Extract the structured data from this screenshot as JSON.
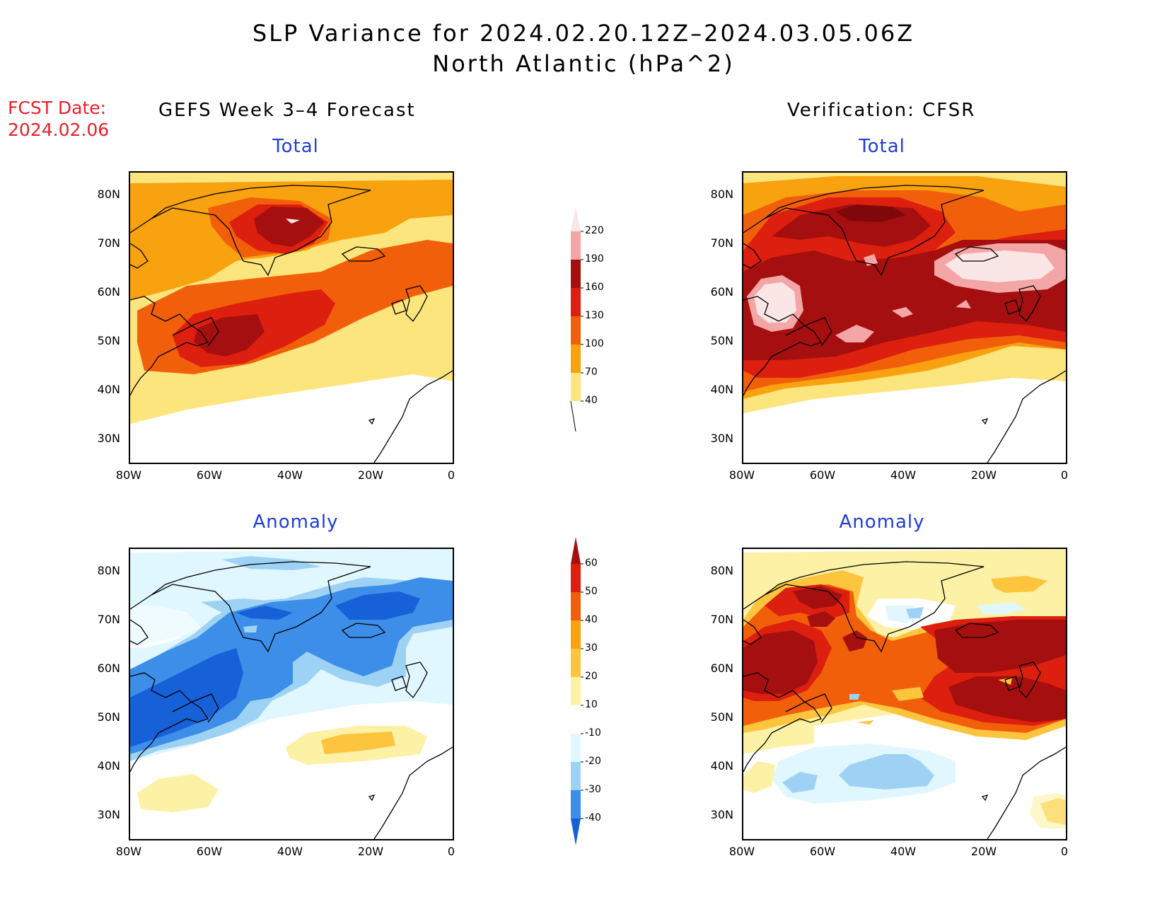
{
  "title": {
    "line1": "SLP Variance for 2024.02.20.12Z–2024.03.05.06Z",
    "line2": "North Atlantic (hPa^2)"
  },
  "fcst_date": {
    "label": "FCST Date:",
    "value": "2024.02.06"
  },
  "columns": {
    "left": "GEFS Week 3–4 Forecast",
    "right": "Verification: CFSR"
  },
  "panels": {
    "total_left_title": "Total",
    "total_right_title": "Total",
    "anom_left_title": "Anomaly",
    "anom_right_title": "Anomaly"
  },
  "axes": {
    "lat_labels": [
      "80N",
      "70N",
      "60N",
      "50N",
      "40N",
      "30N"
    ],
    "lon_labels": [
      "80W",
      "60W",
      "40W",
      "20W",
      "0"
    ]
  },
  "colorbars": {
    "total": {
      "levels": [
        "220",
        "190",
        "160",
        "130",
        "100",
        "70",
        "40"
      ],
      "colors": [
        "#fbe6e6",
        "#f4a5a5",
        "#a50f0f",
        "#dc1f0e",
        "#f25f0a",
        "#f8a20f",
        "#fde57e"
      ]
    },
    "anomaly": {
      "levels": [
        "60",
        "50",
        "40",
        "30",
        "20",
        "10",
        "-10",
        "-20",
        "-30",
        "-40"
      ],
      "colors": [
        "#a50f0f",
        "#dc1f0e",
        "#f25f0a",
        "#f8a20f",
        "#fcc53d",
        "#fdf1a6",
        "#ffffff",
        "#e0f7ff",
        "#9ed2f5",
        "#3c8ee8",
        "#1660d8"
      ]
    }
  },
  "map_data": {
    "region": "North Atlantic",
    "lon_range": [
      -80,
      0
    ],
    "lat_range": [
      25,
      85
    ],
    "field_units": "hPa^2"
  }
}
